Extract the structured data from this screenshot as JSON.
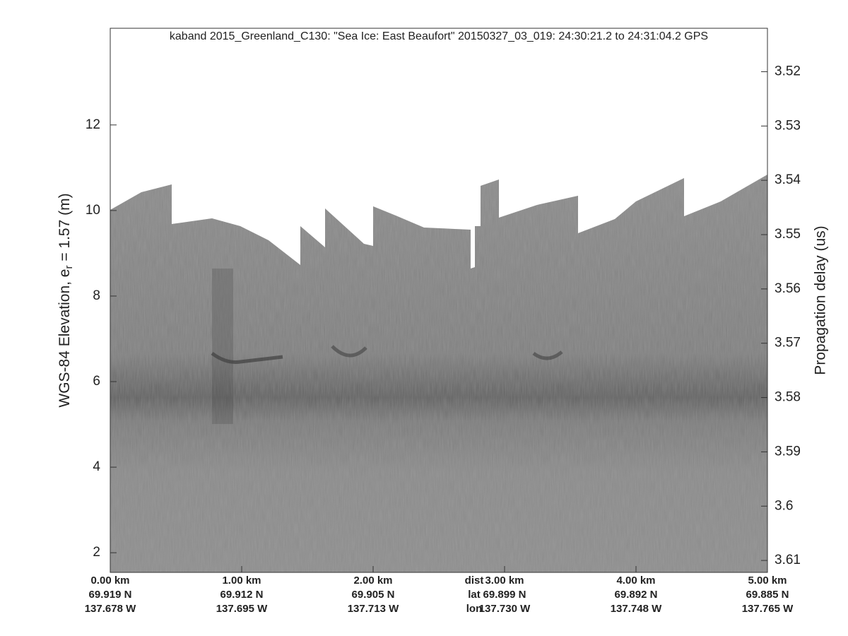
{
  "chart_data": {
    "type": "echogram",
    "title": "kaband 2015_Greenland_C130: \"Sea Ice: East Beaufort\"  20150327_03_019: 24:30:21.2 to 24:31:04.2 GPS",
    "ylabel": "WGS-84 Elevation, e",
    "ylabel_subscript": "r",
    "ylabel_tail": " = 1.57 (m)",
    "y2label": "Propagation delay (us)",
    "ylim": [
      1.54,
      14.26
    ],
    "yticks": [
      2,
      4,
      6,
      8,
      10,
      12
    ],
    "y2lim": [
      3.512,
      3.6122
    ],
    "y2_reverse": true,
    "y2ticks": [
      3.52,
      3.53,
      3.54,
      3.55,
      3.56,
      3.57,
      3.58,
      3.59,
      3.6,
      3.61
    ],
    "xlim": [
      0,
      5
    ],
    "xticks": [
      {
        "value": 0,
        "label": "0.00 km"
      },
      {
        "value": 1,
        "label": "1.00 km"
      },
      {
        "value": 2,
        "label": "2.00 km"
      },
      {
        "value": 3,
        "label": "3.00 km"
      },
      {
        "value": 4,
        "label": "4.00 km"
      },
      {
        "value": 5,
        "label": "5.00 km"
      }
    ],
    "lat_labels": [
      "69.919 N",
      "69.912 N",
      "69.905 N",
      "69.899 N",
      "69.892 N",
      "69.885 N"
    ],
    "lon_labels": [
      "137.678 W",
      "137.695 W",
      "137.713 W",
      "137.730 W",
      "137.748 W",
      "137.765 W"
    ],
    "row_labels": [
      "dist",
      "lat",
      "lon"
    ]
  }
}
